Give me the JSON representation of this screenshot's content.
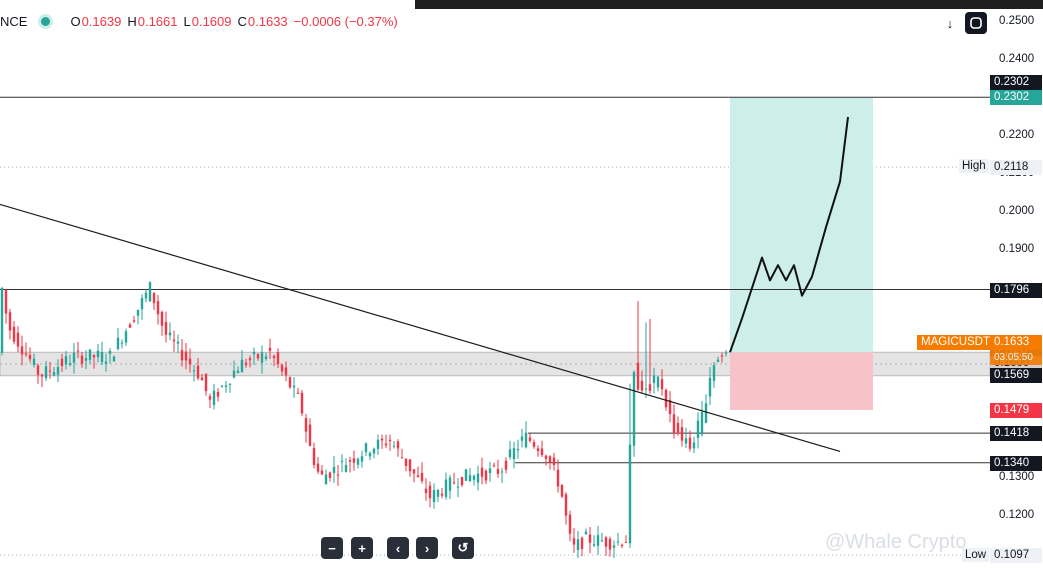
{
  "header": {
    "symbol": "NCE",
    "open_label": "O",
    "open": "0.1639",
    "high_label": "H",
    "high": "0.1661",
    "low_label": "L",
    "low": "0.1609",
    "close_label": "C",
    "close": "0.1633",
    "change": "−0.0006 (−0.37%)"
  },
  "toolbar": {
    "download_icon": "↓",
    "reset_icon": "reset-icon"
  },
  "controls": {
    "zoom_out": "−",
    "zoom_in": "+",
    "scroll_left": "‹",
    "scroll_right": "›",
    "reset": "↺"
  },
  "watermark": "@Whale Crypto",
  "colors": {
    "up": "#26a69a",
    "down": "#f23645",
    "target_zone": "#cdeee9",
    "stop_zone": "#f7c3c9",
    "support_band": "#e0e0e0",
    "symbol_tag": "#f57c00"
  },
  "chart_data": {
    "type": "candlestick",
    "symbol_tag": "MAGICUSDT",
    "countdown": "03:05:50",
    "y_axis_ticks": [
      "0.2500",
      "0.2400",
      "0.2300",
      "0.2200",
      "0.2100",
      "0.2000",
      "0.1900",
      "0.1800",
      "0.1700",
      "0.1600",
      "0.1500",
      "0.1400",
      "0.1300",
      "0.1200",
      "0.1100"
    ],
    "ylim": [
      0.108,
      0.251
    ],
    "last_price": "0.1633",
    "high_marker": {
      "label": "High",
      "value": "0.2118"
    },
    "low_marker": {
      "label": "Low",
      "value": "0.1097"
    },
    "horizontal_levels": [
      {
        "value": "0.2302",
        "style": "black"
      },
      {
        "value": "0.1796",
        "style": "black"
      },
      {
        "value": "0.1418",
        "style": "black"
      },
      {
        "value": "0.1340",
        "style": "black"
      }
    ],
    "support_band": {
      "top": "0.1631",
      "bottom": "0.1569"
    },
    "mid_level": "0.1600",
    "position": {
      "entry": "0.1631",
      "target": "0.2302",
      "stop": "0.1479"
    },
    "trendline": {
      "from_price": 0.202,
      "to_price": 0.137
    },
    "forecast_path": [
      0.1631,
      0.172,
      0.18,
      0.188,
      0.182,
      0.186,
      0.182,
      0.186,
      0.178,
      0.183,
      0.196,
      0.208,
      0.225
    ],
    "candles_summary": "approx. 180 candles, descending from ~0.188 to low 0.1097, then breakout to ~0.165"
  }
}
